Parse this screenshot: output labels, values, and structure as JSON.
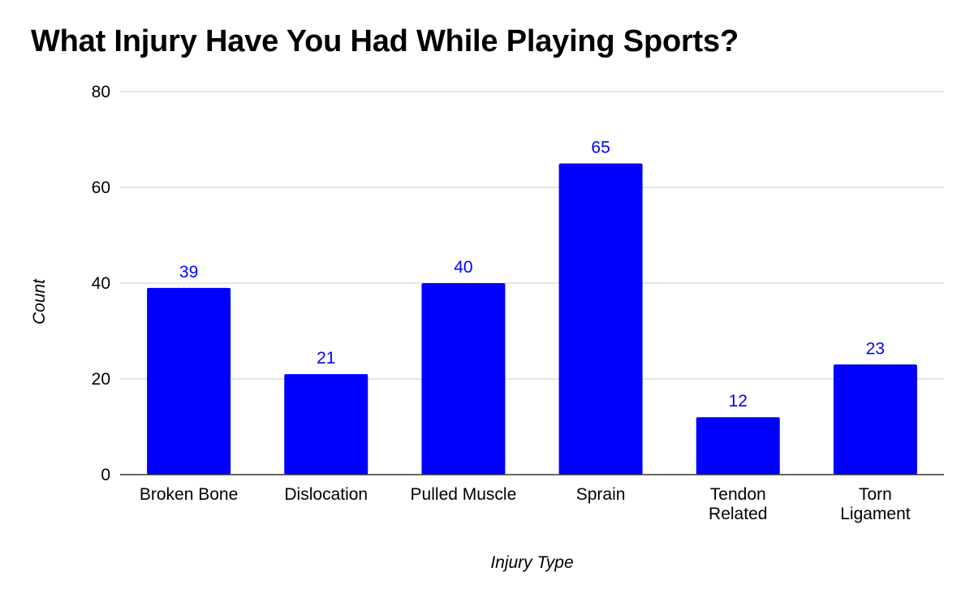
{
  "chart_data": {
    "type": "bar",
    "title": "What Injury Have You Had While Playing Sports?",
    "xlabel": "Injury Type",
    "ylabel": "Count",
    "categories": [
      [
        "Broken Bone"
      ],
      [
        "Dislocation"
      ],
      [
        "Pulled Muscle"
      ],
      [
        "Sprain"
      ],
      [
        "Tendon",
        "Related"
      ],
      [
        "Torn",
        "Ligament"
      ]
    ],
    "values": [
      39,
      21,
      40,
      65,
      12,
      23
    ],
    "ylim": [
      0,
      80
    ],
    "yticks": [
      "0",
      "20",
      "40",
      "60",
      "80"
    ],
    "grid": true,
    "legend": "none",
    "bar_color": "#0000ff",
    "data_label_color": "#0000ff",
    "gridline_color": "#cccccc",
    "axis_color": "#333333"
  }
}
